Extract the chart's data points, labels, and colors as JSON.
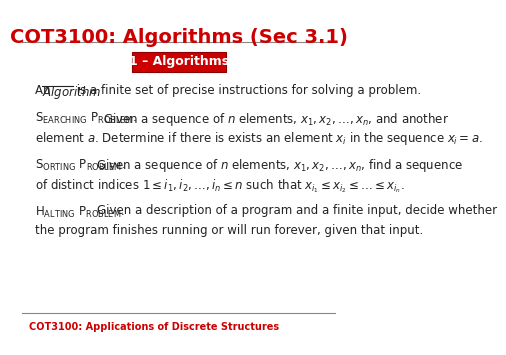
{
  "title": "COT3100: Algorithms (Sec 3.1)",
  "title_color": "#cc0000",
  "title_fontsize": 14,
  "badge_text": "1 – Algorithms",
  "badge_bg": "#cc0000",
  "badge_text_color": "#ffffff",
  "badge_fontsize": 9,
  "footer_text": "COT3100: Applications of Discrete Structures",
  "footer_color": "#cc0000",
  "footer_fontsize": 7,
  "bg_color": "#ffffff",
  "line_color": "#888888",
  "text_color": "#222222"
}
